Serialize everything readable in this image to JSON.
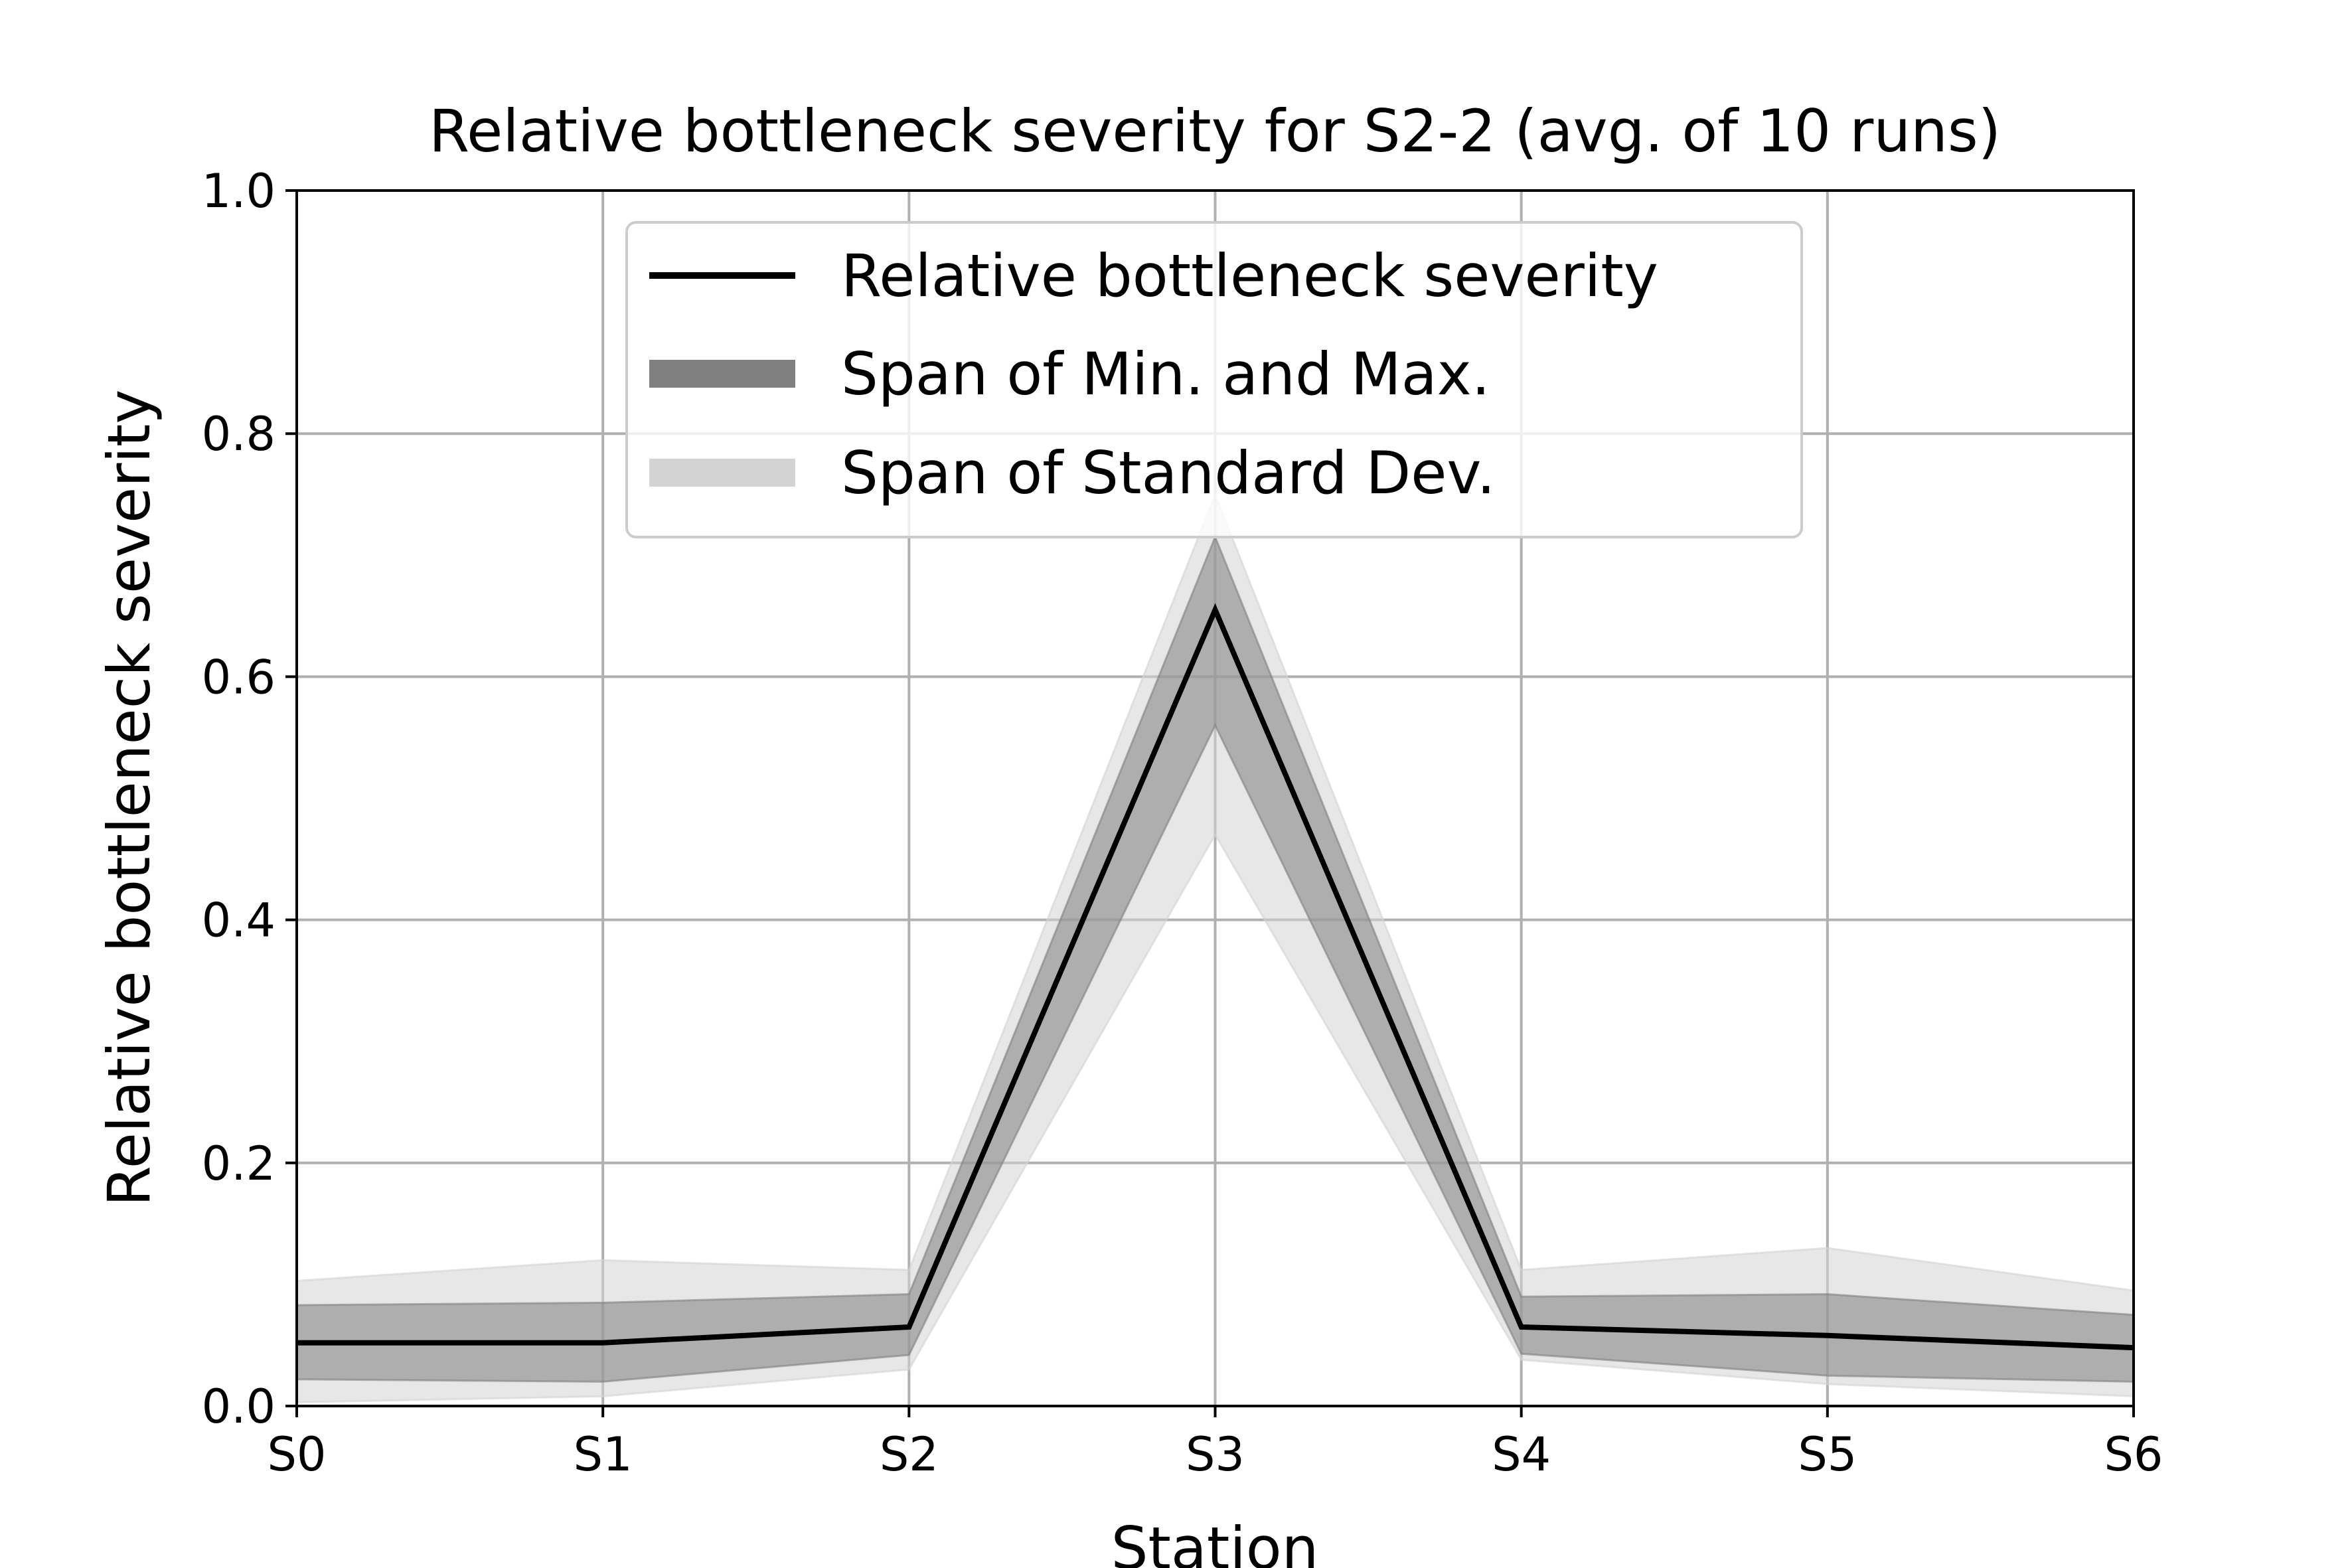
{
  "chart_data": {
    "type": "line",
    "title": "Relative bottleneck severity for S2-2 (avg. of 10 runs)",
    "xlabel": "Station",
    "ylabel": "Relative bottleneck severity",
    "categories": [
      "S0",
      "S1",
      "S2",
      "S3",
      "S4",
      "S5",
      "S6"
    ],
    "ylim": [
      0,
      1.0
    ],
    "yticks": [
      "0.0",
      "0.2",
      "0.4",
      "0.6",
      "0.8",
      "1.0"
    ],
    "grid": true,
    "legend_position": "top-center",
    "series": [
      {
        "name": "Relative bottleneck severity",
        "kind": "line",
        "color": "#000000",
        "values": [
          0.052,
          0.052,
          0.065,
          0.655,
          0.065,
          0.058,
          0.048
        ]
      },
      {
        "name": "Span of Min. and Max.",
        "kind": "band",
        "color": "#808080",
        "lower": [
          0.022,
          0.02,
          0.042,
          0.56,
          0.043,
          0.025,
          0.02
        ],
        "upper": [
          0.083,
          0.085,
          0.092,
          0.715,
          0.09,
          0.092,
          0.075
        ]
      },
      {
        "name": "Span of Standard Dev.",
        "kind": "band",
        "color": "#d3d3d3",
        "lower": [
          0.003,
          0.008,
          0.03,
          0.47,
          0.038,
          0.018,
          0.008
        ],
        "upper": [
          0.103,
          0.12,
          0.112,
          0.75,
          0.112,
          0.13,
          0.095
        ]
      }
    ]
  }
}
